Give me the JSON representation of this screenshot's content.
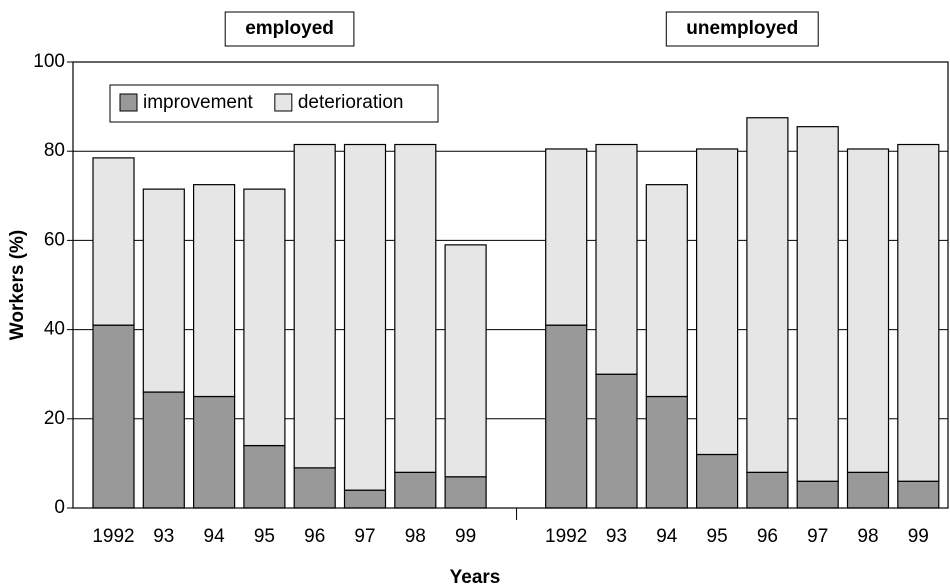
{
  "chart_data": {
    "type": "bar",
    "stacked": true,
    "ylabel": "Workers (%)",
    "xlabel": "Years",
    "ylim": [
      0,
      100
    ],
    "yticks": [
      0,
      20,
      40,
      60,
      80,
      100
    ],
    "grid": true,
    "legend": "upper left",
    "groups": [
      {
        "title": "employed",
        "categories": [
          "1992",
          "93",
          "94",
          "95",
          "96",
          "97",
          "98",
          "99"
        ],
        "series": [
          {
            "name": "improvement",
            "color": "#999999",
            "values": [
              41,
              26,
              25,
              14,
              9,
              4,
              8,
              7
            ]
          },
          {
            "name": "deterioration",
            "color": "#e6e6e6",
            "values": [
              37.5,
              45.5,
              47.5,
              57.5,
              72.5,
              77.5,
              73.5,
              52
            ]
          }
        ]
      },
      {
        "title": "unemployed",
        "categories": [
          "1992",
          "93",
          "94",
          "95",
          "96",
          "97",
          "98",
          "99"
        ],
        "series": [
          {
            "name": "improvement",
            "color": "#999999",
            "values": [
              41,
              30,
              25,
              12,
              8,
              6,
              8,
              6
            ]
          },
          {
            "name": "deterioration",
            "color": "#e6e6e6",
            "values": [
              39.5,
              51.5,
              47.5,
              68.5,
              79.5,
              79.5,
              72.5,
              75.5
            ]
          }
        ]
      }
    ]
  }
}
